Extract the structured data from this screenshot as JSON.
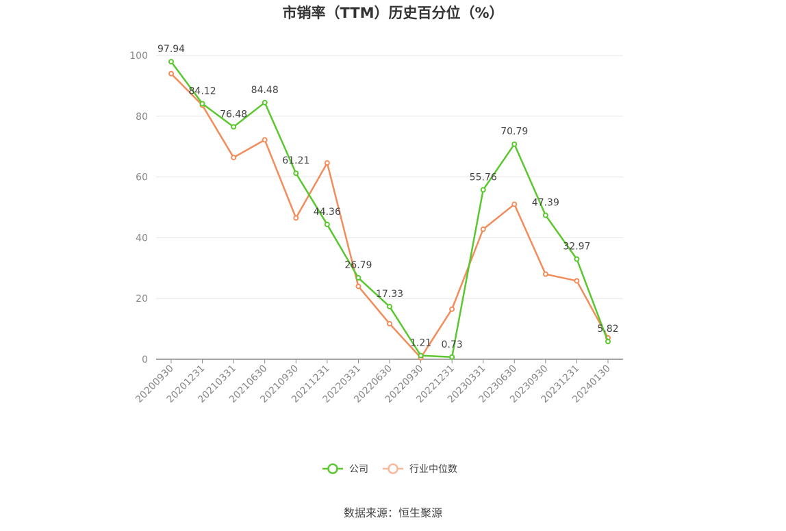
{
  "chart_data": {
    "type": "line",
    "title": "市销率（TTM）历史百分位（%）",
    "categories": [
      "20200930",
      "20201231",
      "20210331",
      "20210630",
      "20210930",
      "20211231",
      "20220331",
      "20220630",
      "20220930",
      "20221231",
      "20230331",
      "20230630",
      "20230930",
      "20231231",
      "20240130"
    ],
    "series": [
      {
        "name": "公司",
        "color": "#5ac72f",
        "values": [
          97.94,
          84.12,
          76.48,
          84.48,
          61.21,
          44.36,
          26.79,
          17.33,
          1.21,
          0.73,
          55.76,
          70.79,
          47.39,
          32.97,
          5.82
        ],
        "labels": [
          "97.94",
          "84.12",
          "76.48",
          "84.48",
          "61.21",
          "44.36",
          "26.79",
          "17.33",
          "1.21",
          "0.73",
          "55.76",
          "70.79",
          "47.39",
          "32.97",
          "5.82"
        ]
      },
      {
        "name": "行业中位数",
        "color": "#f28c5a",
        "values": [
          94.0,
          83.6,
          66.4,
          72.2,
          46.5,
          64.6,
          24.0,
          11.7,
          0.5,
          16.5,
          42.8,
          51.0,
          28.0,
          25.8,
          7.0
        ]
      }
    ],
    "ylim": [
      0,
      100
    ],
    "yticks": [
      "0",
      "20",
      "40",
      "60",
      "80",
      "100"
    ],
    "grid": true,
    "legend": "bottom-center"
  },
  "source": "数据来源：恒生聚源"
}
